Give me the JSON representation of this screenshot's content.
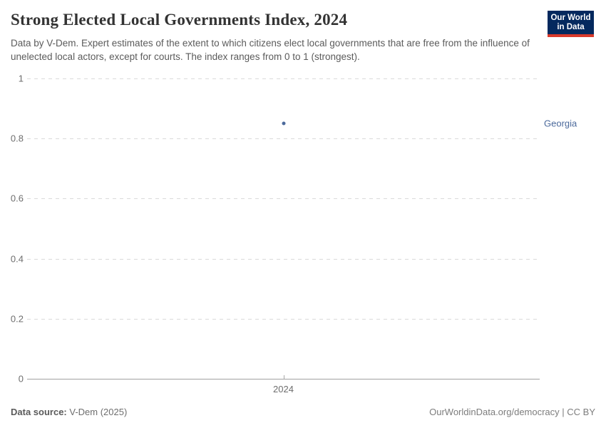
{
  "header": {
    "title": "Strong Elected Local Governments Index, 2024",
    "subtitle": "Data by V-Dem. Expert estimates of the extent to which citizens elect local governments that are free from the influence of unelected local actors, except for courts. The index ranges from 0 to 1 (strongest).",
    "logo": {
      "line1": "Our World",
      "line2": "in Data",
      "bg_color": "#04295e",
      "bar_color": "#d93a2b",
      "text_color": "#ffffff"
    }
  },
  "chart_data": {
    "type": "scatter",
    "title": "Strong Elected Local Governments Index, 2024",
    "x": [
      2024
    ],
    "xticklabels": [
      "2024"
    ],
    "series": [
      {
        "name": "Georgia",
        "values": [
          0.85
        ],
        "color": "#4c6a9c"
      }
    ],
    "xlabel": "",
    "ylabel": "",
    "ylim": [
      0,
      1
    ],
    "yticks": [
      0,
      0.2,
      0.4,
      0.6,
      0.8,
      1
    ],
    "grid": "horizontal-dashed",
    "legend": "entity-label-right"
  },
  "footer": {
    "source_label": "Data source:",
    "source_value": "V-Dem (2025)",
    "credit": "OurWorldinData.org/democracy | CC BY"
  }
}
